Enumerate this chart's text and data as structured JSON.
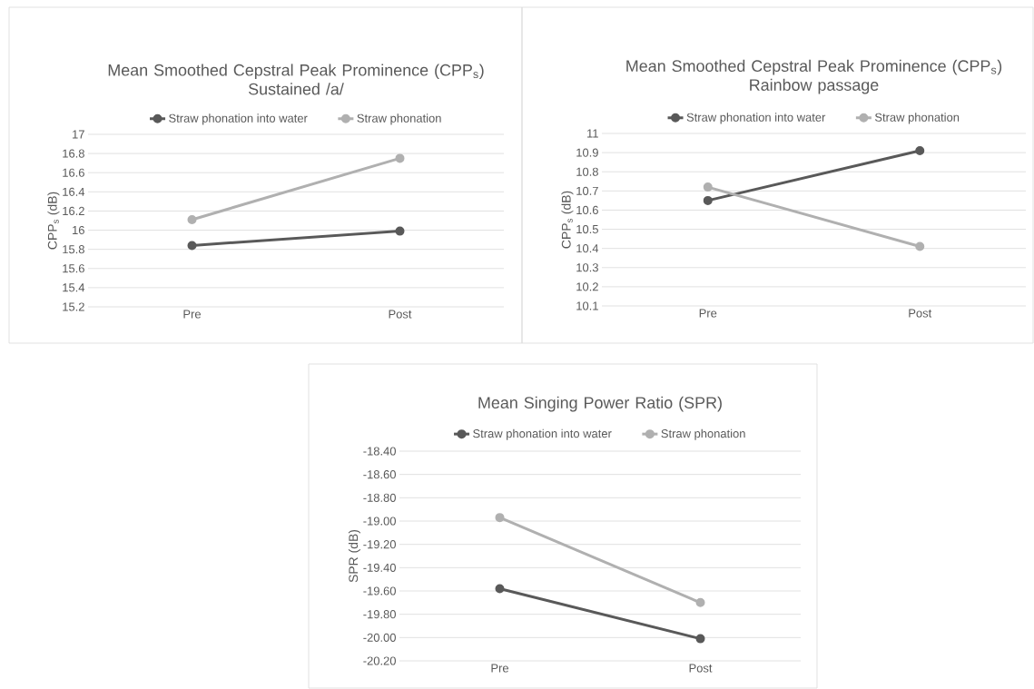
{
  "chart_data": [
    {
      "type": "line",
      "title": "Mean Smoothed Cepstral Peak Prominence (CPP$_{s}$)",
      "subtitle": "Sustained /a/",
      "ylabel": "CPP$_{s}$ (dB)",
      "categories": [
        "Pre",
        "Post"
      ],
      "series": [
        {
          "name": "Straw phonation into water",
          "color": "#595959",
          "values": [
            15.84,
            15.99
          ]
        },
        {
          "name": "Straw phonation",
          "color": "#b0b0b0",
          "values": [
            16.11,
            16.75
          ]
        }
      ],
      "ylim": [
        15.2,
        17
      ],
      "yticks": [
        15.2,
        15.4,
        15.6,
        15.8,
        16,
        16.2,
        16.4,
        16.6,
        16.8,
        17
      ],
      "grid": "y",
      "legend": "top",
      "marker": "circle",
      "line_style": "solid"
    },
    {
      "type": "line",
      "title": "Mean Smoothed Cepstral Peak Prominence (CPP$_{s}$)",
      "subtitle": "Rainbow passage",
      "ylabel": "CPP$_{s}$ (dB)",
      "categories": [
        "Pre",
        "Post"
      ],
      "series": [
        {
          "name": "Straw phonation into water",
          "color": "#595959",
          "values": [
            10.65,
            10.91
          ]
        },
        {
          "name": "Straw phonation",
          "color": "#b0b0b0",
          "values": [
            10.72,
            10.41
          ]
        }
      ],
      "ylim": [
        10.1,
        11
      ],
      "yticks": [
        10.1,
        10.2,
        10.3,
        10.4,
        10.5,
        10.6,
        10.7,
        10.8,
        10.9,
        11
      ],
      "grid": "y",
      "legend": "top",
      "marker": "circle",
      "line_style": "solid"
    },
    {
      "type": "line",
      "title": "Mean Singing Power Ratio (SPR)",
      "ylabel": "SPR (dB)",
      "categories": [
        "Pre",
        "Post"
      ],
      "series": [
        {
          "name": "Straw phonation into water",
          "color": "#595959",
          "values": [
            -19.58,
            -20.01
          ]
        },
        {
          "name": "Straw phonation",
          "color": "#b0b0b0",
          "values": [
            -18.97,
            -19.7
          ]
        }
      ],
      "ylim": [
        -20.2,
        -18.4
      ],
      "yticks": [
        {
          "value": -20.2,
          "label": "-20.20"
        },
        {
          "value": -20.0,
          "label": "-20.00"
        },
        {
          "value": -19.8,
          "label": "-19.80"
        },
        {
          "value": -19.6,
          "label": "-19.60"
        },
        {
          "value": -19.4,
          "label": "-19.40"
        },
        {
          "value": -19.2,
          "label": "-19.20"
        },
        {
          "value": -19.0,
          "label": "-19.00"
        },
        {
          "value": -18.8,
          "label": "-18.80"
        },
        {
          "value": -18.6,
          "label": "-18.60"
        },
        {
          "value": -18.4,
          "label": "-18.40"
        }
      ],
      "grid": "y",
      "legend": "top",
      "marker": "circle",
      "line_style": "solid"
    }
  ]
}
